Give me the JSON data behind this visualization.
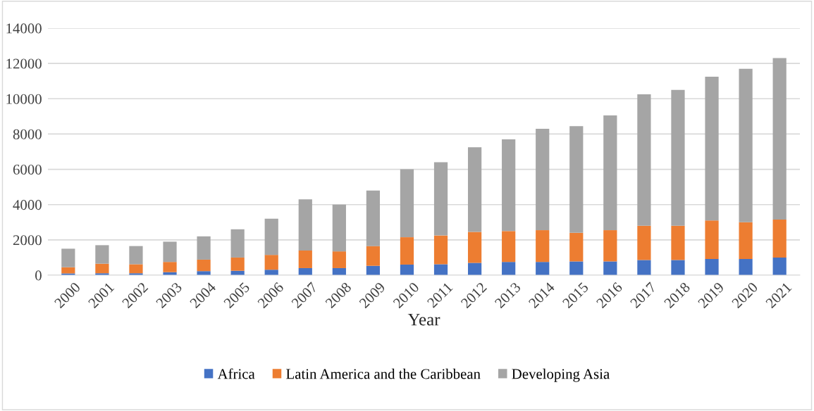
{
  "chart_data": {
    "type": "bar",
    "stacked": true,
    "xlabel": "Year",
    "categories": [
      "2000",
      "2001",
      "2002",
      "2003",
      "2004",
      "2005",
      "2006",
      "2007",
      "2008",
      "2009",
      "2010",
      "2011",
      "2012",
      "2013",
      "2014",
      "2015",
      "2016",
      "2017",
      "2018",
      "2019",
      "2020",
      "2021"
    ],
    "series": [
      {
        "name": "Africa",
        "color": "#4472c4",
        "values": [
          100,
          110,
          110,
          170,
          230,
          250,
          310,
          400,
          400,
          530,
          600,
          620,
          700,
          750,
          750,
          780,
          780,
          860,
          860,
          920,
          920,
          1000
        ]
      },
      {
        "name": "Latin America and the Caribbean",
        "color": "#ed7d31",
        "values": [
          350,
          540,
          510,
          580,
          650,
          750,
          840,
          1000,
          950,
          1120,
          1550,
          1630,
          1750,
          1750,
          1800,
          1620,
          1770,
          1940,
          1940,
          2180,
          2080,
          2150
        ]
      },
      {
        "name": "Developing Asia",
        "color": "#a5a5a5",
        "values": [
          1050,
          1050,
          1030,
          1150,
          1320,
          1600,
          2050,
          2900,
          2650,
          3150,
          3850,
          4150,
          4800,
          5200,
          5750,
          6050,
          6500,
          7450,
          7700,
          8150,
          8700,
          9150
        ]
      }
    ],
    "ylim": [
      0,
      14000
    ],
    "yticks": [
      0,
      2000,
      4000,
      6000,
      8000,
      10000,
      12000,
      14000
    ],
    "grid": "y",
    "legend": "bottom"
  }
}
